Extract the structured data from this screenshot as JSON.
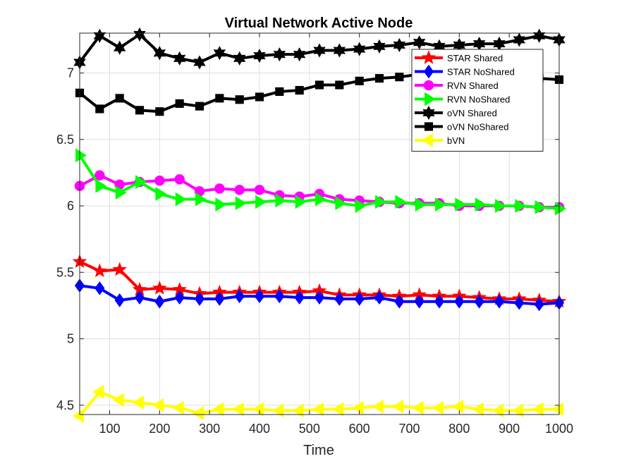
{
  "chart_data": {
    "type": "line",
    "title": "Virtual Network Active Node",
    "xlabel": "Time",
    "ylabel": "",
    "xlim": [
      40,
      1000
    ],
    "ylim": [
      4.43,
      7.3
    ],
    "xticks": [
      "100",
      "200",
      "300",
      "400",
      "500",
      "600",
      "700",
      "800",
      "900",
      "1000"
    ],
    "yticks": [
      "4.5",
      "5",
      "5.5",
      "6",
      "6.5",
      "7"
    ],
    "grid": true,
    "legend_position": "top-right",
    "x": [
      40,
      80,
      120,
      160,
      200,
      240,
      280,
      320,
      360,
      400,
      440,
      480,
      520,
      560,
      600,
      640,
      680,
      720,
      760,
      800,
      840,
      880,
      920,
      960,
      1000
    ],
    "series": [
      {
        "name": "STAR Shared",
        "color": "#ff0000",
        "marker": "star",
        "values": [
          5.58,
          5.51,
          5.52,
          5.37,
          5.38,
          5.37,
          5.34,
          5.35,
          5.35,
          5.35,
          5.35,
          5.35,
          5.36,
          5.33,
          5.33,
          5.33,
          5.32,
          5.33,
          5.32,
          5.32,
          5.31,
          5.3,
          5.3,
          5.29,
          5.28
        ]
      },
      {
        "name": "STAR NoShared",
        "color": "#0000ff",
        "marker": "diamond",
        "values": [
          5.4,
          5.38,
          5.29,
          5.31,
          5.28,
          5.31,
          5.3,
          5.3,
          5.32,
          5.32,
          5.32,
          5.31,
          5.31,
          5.3,
          5.3,
          5.31,
          5.28,
          5.28,
          5.28,
          5.28,
          5.28,
          5.28,
          5.27,
          5.26,
          5.27
        ]
      },
      {
        "name": "RVN Shared",
        "color": "#ff00ff",
        "marker": "circle",
        "values": [
          6.15,
          6.23,
          6.16,
          6.18,
          6.19,
          6.2,
          6.11,
          6.13,
          6.12,
          6.12,
          6.08,
          6.07,
          6.09,
          6.05,
          6.04,
          6.03,
          6.02,
          6.02,
          6.02,
          6.0,
          6.0,
          6.0,
          6.0,
          5.99,
          5.99
        ]
      },
      {
        "name": "RVN NoShared",
        "color": "#00ff00",
        "marker": "triangle-right",
        "values": [
          6.38,
          6.15,
          6.1,
          6.18,
          6.09,
          6.05,
          6.05,
          6.01,
          6.02,
          6.03,
          6.04,
          6.03,
          6.05,
          6.02,
          6.0,
          6.03,
          6.03,
          6.01,
          6.01,
          6.01,
          6.01,
          6.0,
          6.0,
          5.99,
          5.98
        ]
      },
      {
        "name": "oVN Shared",
        "color": "#000000",
        "marker": "hexagram",
        "values": [
          7.08,
          7.28,
          7.19,
          7.29,
          7.15,
          7.11,
          7.08,
          7.15,
          7.11,
          7.13,
          7.14,
          7.14,
          7.17,
          7.17,
          7.18,
          7.2,
          7.21,
          7.23,
          7.2,
          7.21,
          7.22,
          7.22,
          7.25,
          7.28,
          7.25
        ]
      },
      {
        "name": "oVN NoShared",
        "color": "#000000",
        "marker": "square",
        "values": [
          6.85,
          6.73,
          6.81,
          6.72,
          6.71,
          6.77,
          6.75,
          6.81,
          6.8,
          6.82,
          6.86,
          6.87,
          6.91,
          6.91,
          6.94,
          6.96,
          6.97,
          6.99,
          6.98,
          6.99,
          6.99,
          6.98,
          6.97,
          6.96,
          6.95
        ]
      },
      {
        "name": "bVN",
        "color": "#ffff00",
        "marker": "triangle-left",
        "values": [
          4.42,
          4.6,
          4.54,
          4.52,
          4.5,
          4.48,
          4.44,
          4.47,
          4.47,
          4.47,
          4.46,
          4.46,
          4.47,
          4.47,
          4.48,
          4.49,
          4.49,
          4.48,
          4.48,
          4.49,
          4.47,
          4.46,
          4.46,
          4.47,
          4.47
        ]
      }
    ]
  }
}
